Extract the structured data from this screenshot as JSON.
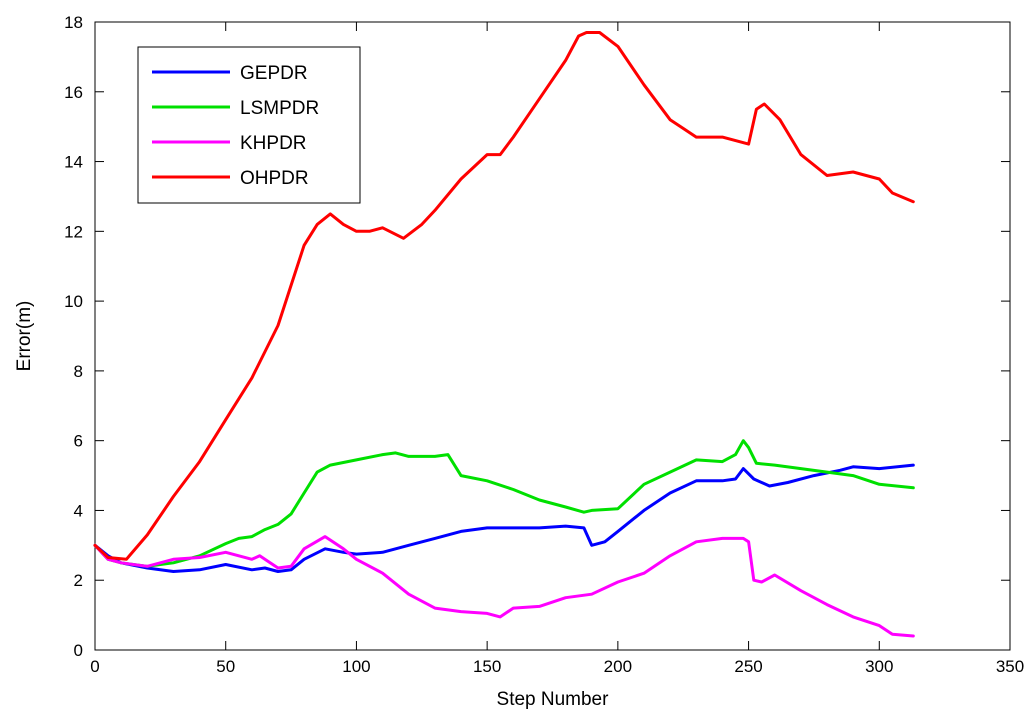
{
  "chart_data": {
    "type": "line",
    "title": "",
    "xlabel": "Step Number",
    "ylabel": "Error(m)",
    "xlim": [
      0,
      350
    ],
    "ylim": [
      0,
      18
    ],
    "xticks": [
      0,
      50,
      100,
      150,
      200,
      250,
      300,
      350
    ],
    "yticks": [
      0,
      2,
      4,
      6,
      8,
      10,
      12,
      14,
      16,
      18
    ],
    "grid": false,
    "legend_position": "top-left",
    "series": [
      {
        "name": "GEPDR",
        "color": "#0000ff",
        "x": [
          0,
          5,
          10,
          20,
          30,
          40,
          50,
          60,
          65,
          70,
          75,
          80,
          88,
          95,
          100,
          110,
          120,
          130,
          140,
          150,
          160,
          170,
          180,
          187,
          190,
          195,
          200,
          210,
          220,
          230,
          240,
          245,
          248,
          252,
          258,
          265,
          275,
          285,
          290,
          300,
          313
        ],
        "y": [
          3.0,
          2.7,
          2.5,
          2.35,
          2.25,
          2.3,
          2.45,
          2.3,
          2.35,
          2.25,
          2.3,
          2.6,
          2.9,
          2.8,
          2.75,
          2.8,
          3.0,
          3.2,
          3.4,
          3.5,
          3.5,
          3.5,
          3.55,
          3.5,
          3.0,
          3.1,
          3.4,
          4.0,
          4.5,
          4.85,
          4.85,
          4.9,
          5.2,
          4.9,
          4.7,
          4.8,
          5.0,
          5.15,
          5.25,
          5.2,
          5.3
        ]
      },
      {
        "name": "LSMPDR",
        "color": "#00e000",
        "x": [
          0,
          5,
          10,
          20,
          30,
          40,
          50,
          55,
          60,
          65,
          70,
          75,
          80,
          85,
          90,
          100,
          110,
          115,
          120,
          130,
          135,
          140,
          150,
          160,
          170,
          180,
          187,
          190,
          200,
          210,
          220,
          230,
          240,
          245,
          248,
          250,
          253,
          260,
          270,
          280,
          290,
          300,
          313
        ],
        "y": [
          3.0,
          2.6,
          2.5,
          2.4,
          2.5,
          2.7,
          3.05,
          3.2,
          3.25,
          3.45,
          3.6,
          3.9,
          4.5,
          5.1,
          5.3,
          5.45,
          5.6,
          5.65,
          5.55,
          5.55,
          5.6,
          5.0,
          4.85,
          4.6,
          4.3,
          4.1,
          3.95,
          4.0,
          4.05,
          4.75,
          5.1,
          5.45,
          5.4,
          5.6,
          6.0,
          5.8,
          5.35,
          5.3,
          5.2,
          5.1,
          5.0,
          4.75,
          4.65
        ]
      },
      {
        "name": "KHPDR",
        "color": "#ff00ff",
        "x": [
          0,
          5,
          10,
          20,
          30,
          40,
          50,
          55,
          60,
          63,
          66,
          70,
          75,
          80,
          88,
          95,
          100,
          110,
          120,
          130,
          140,
          150,
          155,
          160,
          170,
          180,
          190,
          200,
          210,
          220,
          230,
          240,
          248,
          250,
          252,
          255,
          260,
          270,
          280,
          290,
          300,
          305,
          313
        ],
        "y": [
          3.0,
          2.6,
          2.5,
          2.4,
          2.6,
          2.65,
          2.8,
          2.7,
          2.6,
          2.7,
          2.55,
          2.35,
          2.4,
          2.9,
          3.25,
          2.9,
          2.6,
          2.2,
          1.6,
          1.2,
          1.1,
          1.05,
          0.95,
          1.2,
          1.25,
          1.5,
          1.6,
          1.95,
          2.2,
          2.7,
          3.1,
          3.2,
          3.2,
          3.1,
          2.0,
          1.95,
          2.15,
          1.7,
          1.3,
          0.95,
          0.7,
          0.45,
          0.4
        ]
      },
      {
        "name": "OHPDR",
        "color": "#ff0000",
        "x": [
          0,
          5,
          12,
          20,
          30,
          40,
          50,
          60,
          70,
          80,
          85,
          90,
          95,
          100,
          105,
          110,
          118,
          125,
          130,
          140,
          150,
          155,
          160,
          170,
          180,
          185,
          188,
          193,
          200,
          210,
          220,
          230,
          240,
          245,
          250,
          253,
          256,
          262,
          270,
          280,
          290,
          300,
          305,
          313
        ],
        "y": [
          3.0,
          2.65,
          2.6,
          3.3,
          4.4,
          5.4,
          6.6,
          7.8,
          9.3,
          11.6,
          12.2,
          12.5,
          12.2,
          12.0,
          12.0,
          12.1,
          11.8,
          12.2,
          12.6,
          13.5,
          14.2,
          14.2,
          14.7,
          15.8,
          16.9,
          17.6,
          17.7,
          17.7,
          17.3,
          16.2,
          15.2,
          14.7,
          14.7,
          14.6,
          14.5,
          15.5,
          15.65,
          15.2,
          14.2,
          13.6,
          13.7,
          13.5,
          13.1,
          12.85
        ]
      }
    ]
  }
}
